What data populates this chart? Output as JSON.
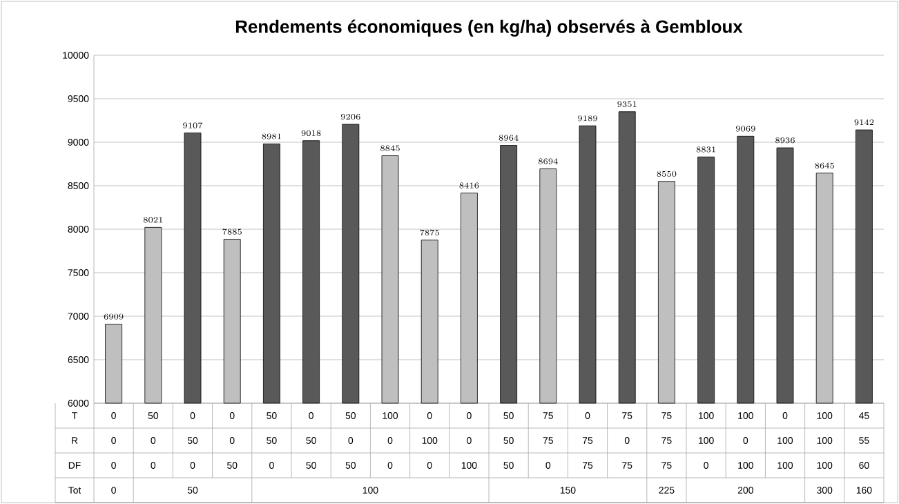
{
  "chart_data": {
    "type": "bar",
    "title": "Rendements économiques (en kg/ha) observés à Gembloux",
    "categories": [
      null,
      null,
      null,
      null,
      null,
      null,
      null,
      null,
      null,
      null,
      null,
      null,
      null,
      null,
      null,
      null,
      null,
      null,
      null,
      null
    ],
    "values": [
      6909,
      8021,
      9107,
      7885,
      8981,
      9018,
      9206,
      8845,
      7875,
      8416,
      8964,
      8694,
      9189,
      9351,
      8550,
      8831,
      9069,
      8936,
      8645,
      9142
    ],
    "colors": [
      "#bfbfbf",
      "#bfbfbf",
      "#595959",
      "#bfbfbf",
      "#595959",
      "#595959",
      "#595959",
      "#bfbfbf",
      "#bfbfbf",
      "#bfbfbf",
      "#595959",
      "#bfbfbf",
      "#595959",
      "#595959",
      "#bfbfbf",
      "#595959",
      "#595959",
      "#595959",
      "#bfbfbf",
      "#595959"
    ],
    "ylim": [
      6000,
      10000
    ],
    "yticks": [
      6000,
      6500,
      7000,
      7500,
      8000,
      8500,
      9000,
      9500,
      10000
    ],
    "grid": "y",
    "data_labels": true,
    "annotations": [
      "T",
      "R",
      "DF",
      "Tot",
      "0",
      "50",
      "0",
      "0",
      "50",
      "0",
      "50",
      "100",
      "0",
      "0",
      "50",
      "75",
      "0",
      "75",
      "75",
      "100",
      "100",
      "0",
      "100",
      "45",
      "0",
      "0",
      "50",
      "0",
      "50",
      "50",
      "0",
      "0",
      "100",
      "0",
      "50",
      "75",
      "75",
      "0",
      "75",
      "100",
      "0",
      "100",
      "100",
      "55",
      "0",
      "0",
      "0",
      "50",
      "0",
      "50",
      "50",
      "0",
      "0",
      "100",
      "50",
      "0",
      "75",
      "75",
      "75",
      "0",
      "100",
      "100",
      "100",
      "60",
      "0",
      "50",
      "100",
      "150",
      "225",
      "200",
      "300",
      "160"
    ]
  }
}
